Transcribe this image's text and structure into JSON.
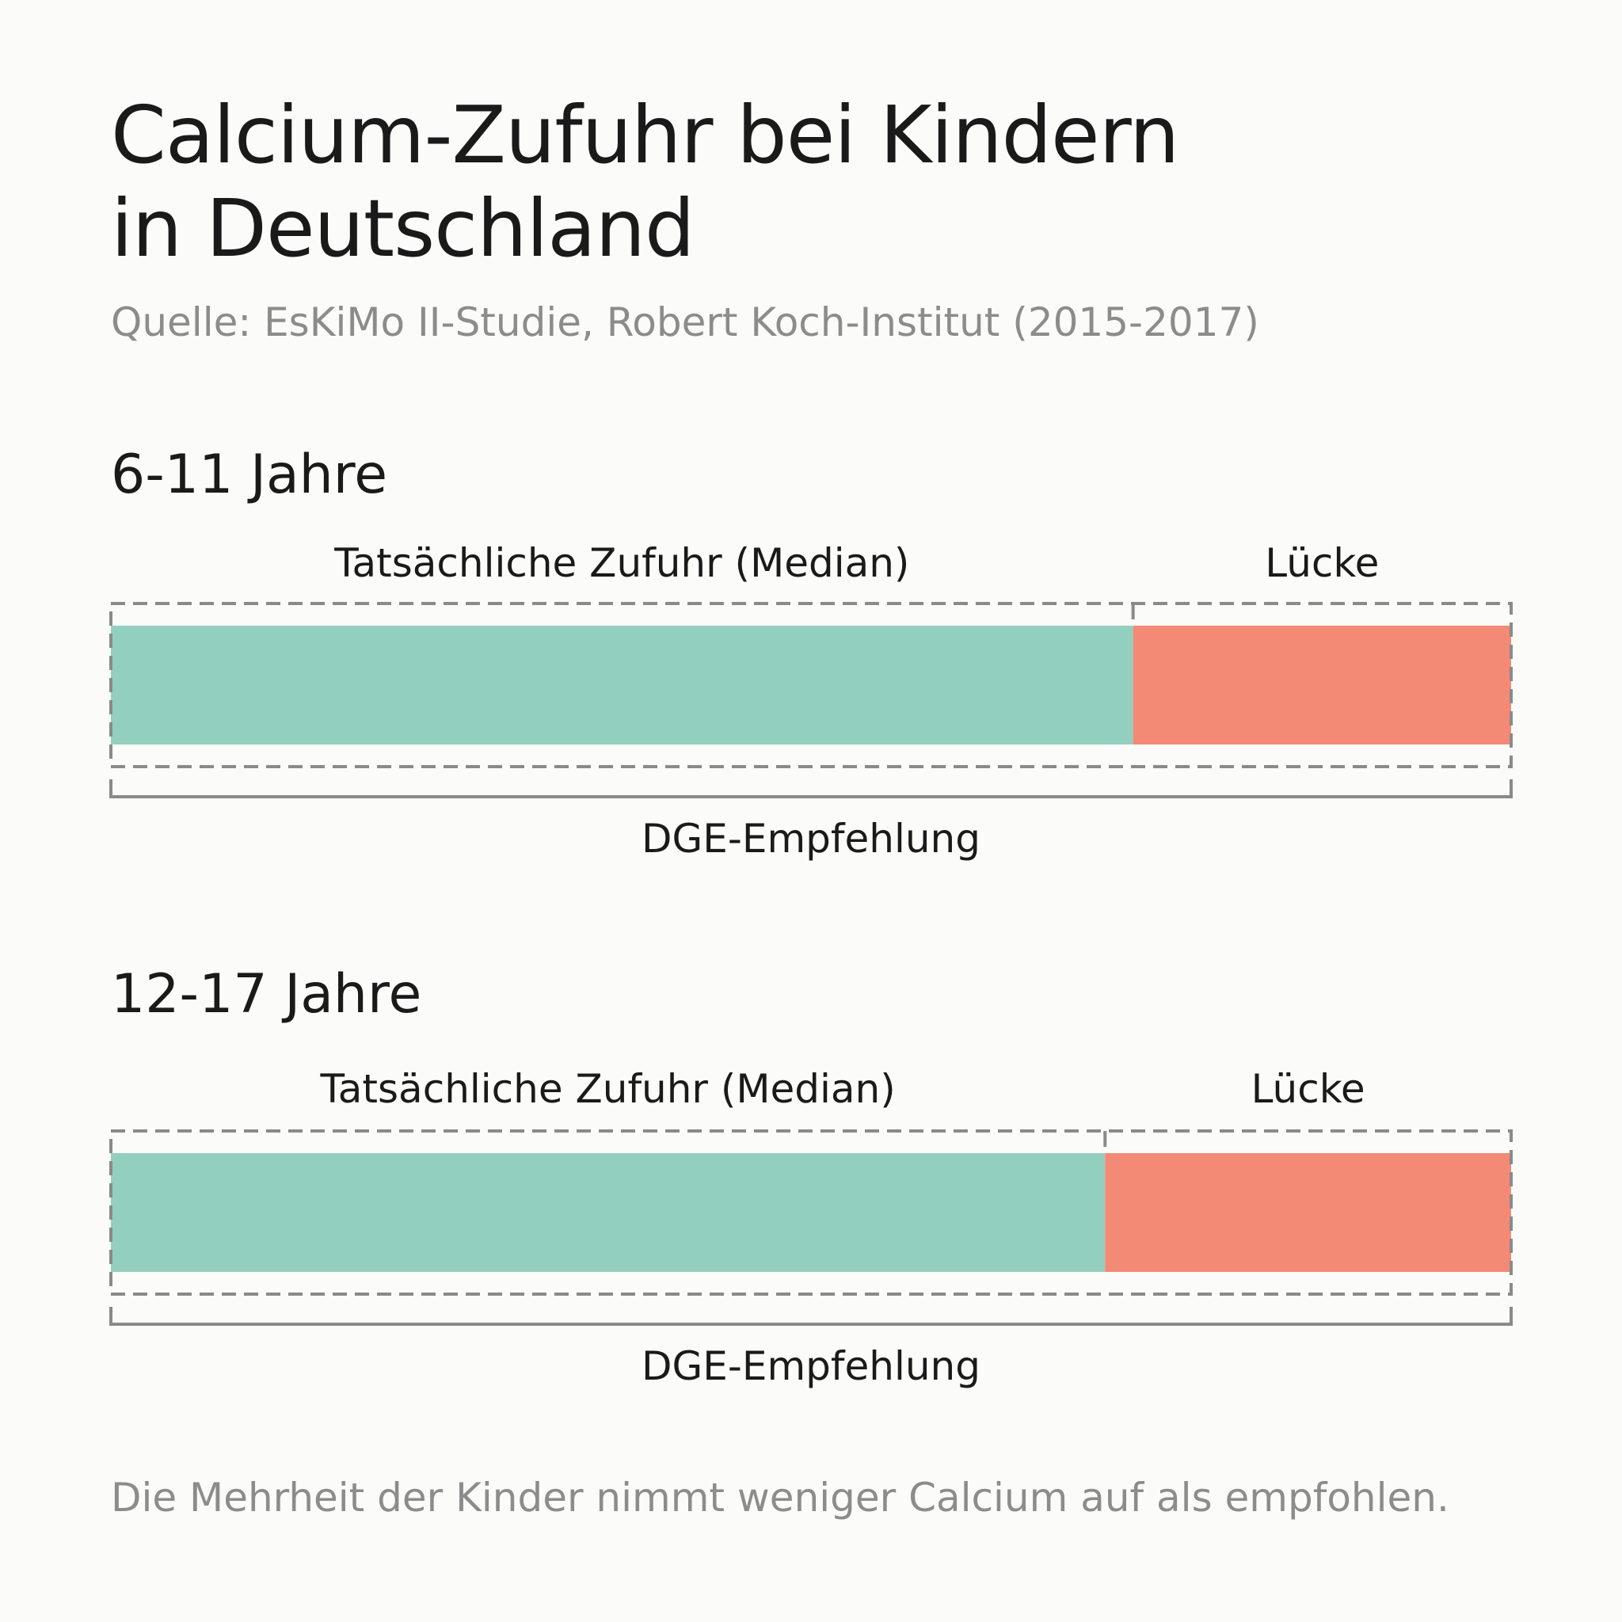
{
  "title": {
    "line1": "Calcium-Zufuhr bei Kindern",
    "line2": "in Deutschland"
  },
  "source": "Quelle: EsKiMo II-Studie, Robert Koch-Institut (2015-2017)",
  "footer": "Die Mehrheit der Kinder nimmt weniger Calcium auf als empfohlen.",
  "colors": {
    "intake": "#93cfbf",
    "gap": "#f38a75",
    "outline": "#8a8a8a",
    "muted_text": "#8c8c8c"
  },
  "chart_data": [
    {
      "type": "bar",
      "orientation": "horizontal-stacked",
      "title": "6-11 Jahre",
      "segments": [
        {
          "name": "Tatsächliche Zufuhr (Median)",
          "share": 0.73
        },
        {
          "name": "Lücke",
          "share": 0.27
        }
      ],
      "total_label": "DGE-Empfehlung",
      "total_share": 1.0
    },
    {
      "type": "bar",
      "orientation": "horizontal-stacked",
      "title": "12-17 Jahre",
      "segments": [
        {
          "name": "Tatsächliche Zufuhr (Median)",
          "share": 0.71
        },
        {
          "name": "Lücke",
          "share": 0.29
        }
      ],
      "total_label": "DGE-Empfehlung",
      "total_share": 1.0
    }
  ]
}
